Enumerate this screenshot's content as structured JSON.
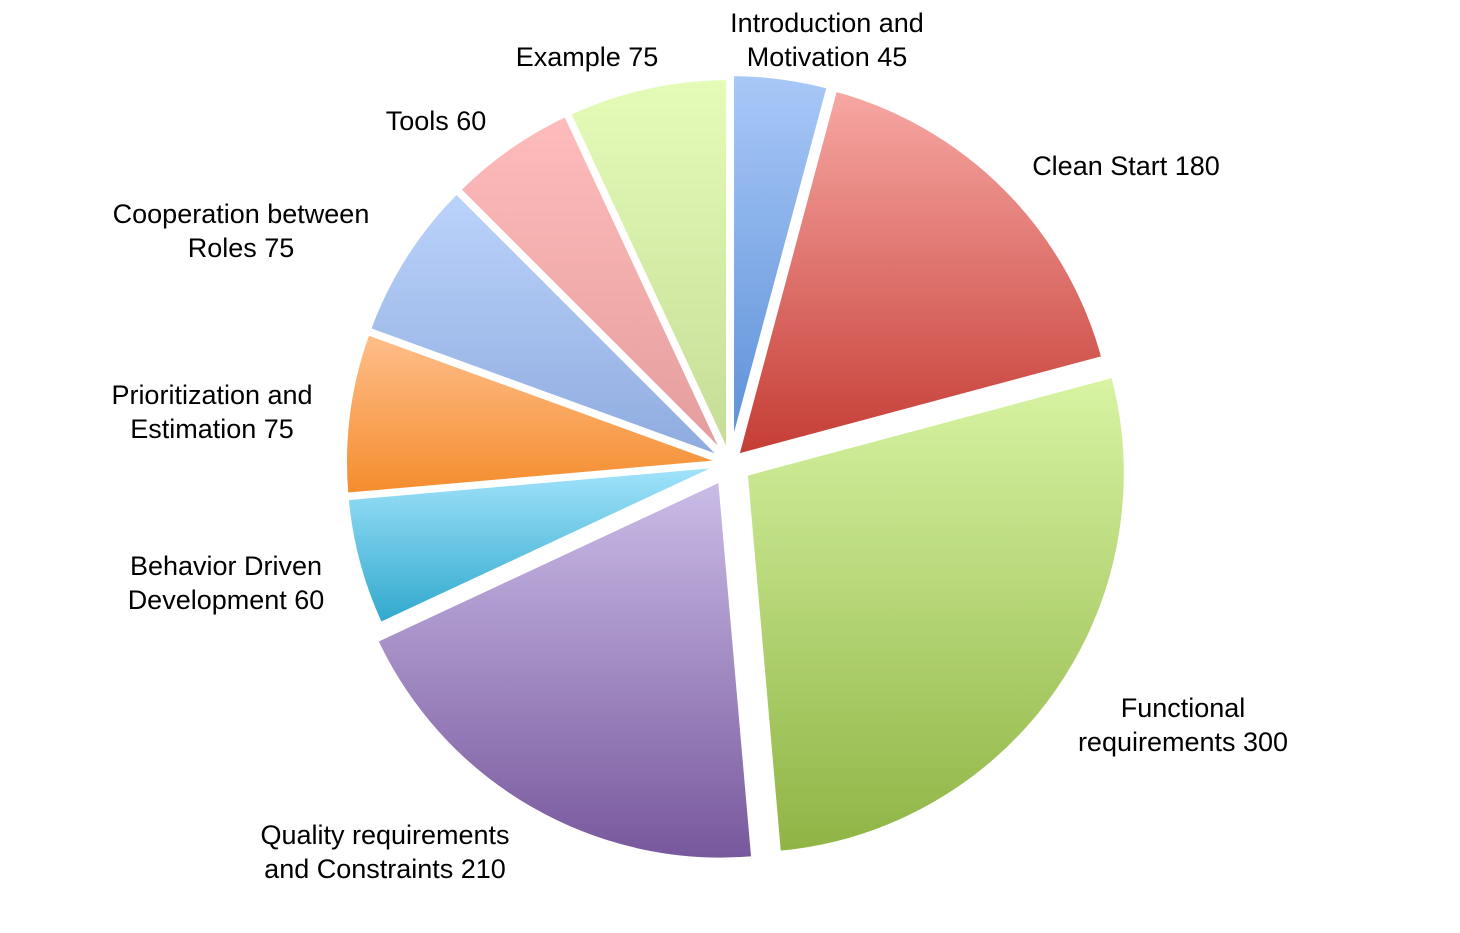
{
  "chart_data": {
    "type": "pie",
    "title": "",
    "legend": "none",
    "slices": [
      {
        "label_lines": [
          "Introduction and",
          "Motivation 45"
        ],
        "value": 45,
        "color_top": "#a9c8f8",
        "color_bottom": "#5a8fd6"
      },
      {
        "label_lines": [
          "Clean Start 180"
        ],
        "value": 180,
        "color_top": "#f8a8a4",
        "color_bottom": "#c43c34"
      },
      {
        "label_lines": [
          "Functional",
          "requirements 300"
        ],
        "value": 300,
        "color_top": "#d8f4a4",
        "color_bottom": "#8fb444"
      },
      {
        "label_lines": [
          "Quality requirements",
          "and Constraints 210"
        ],
        "value": 210,
        "color_top": "#cbbde8",
        "color_bottom": "#77579c"
      },
      {
        "label_lines": [
          "Behavior Driven",
          "Development 60"
        ],
        "value": 60,
        "color_top": "#a4e4fc",
        "color_bottom": "#2ea8cc"
      },
      {
        "label_lines": [
          "Prioritization and",
          "Estimation 75"
        ],
        "value": 75,
        "color_top": "#ffbf8c",
        "color_bottom": "#f48c2c"
      },
      {
        "label_lines": [
          "Cooperation between",
          "Roles 75"
        ],
        "value": 75,
        "color_top": "#bcd4fc",
        "color_bottom": "#8eaade"
      },
      {
        "label_lines": [
          "Tools 60"
        ],
        "value": 60,
        "color_top": "#ffbcbc",
        "color_bottom": "#e49c9c"
      },
      {
        "label_lines": [
          "Example 75"
        ],
        "value": 75,
        "color_top": "#e4fcb8",
        "color_bottom": "#c4dc94"
      }
    ]
  }
}
